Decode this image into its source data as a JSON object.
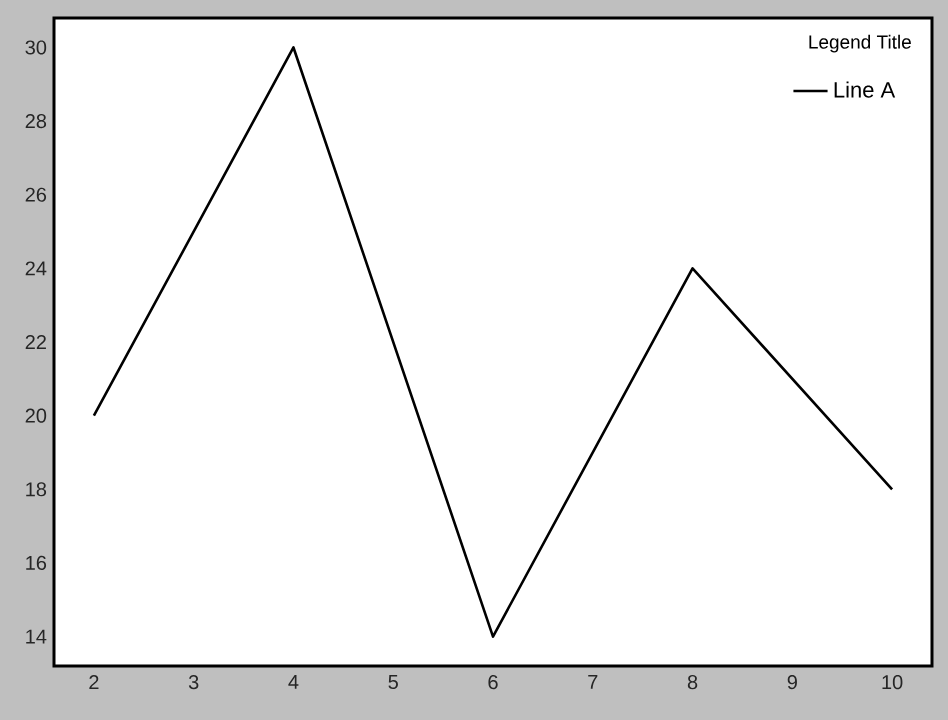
{
  "chart_data": {
    "type": "line",
    "legend_title": "Legend Title",
    "x": [
      2,
      4,
      6,
      8,
      10
    ],
    "series": [
      {
        "name": "Line A",
        "color": "#000000",
        "values": [
          20,
          30,
          14,
          24,
          18
        ]
      }
    ],
    "xlim": [
      1.6,
      10.4
    ],
    "ylim": [
      13.2,
      30.8
    ],
    "xticks": [
      2,
      3,
      4,
      5,
      6,
      7,
      8,
      9,
      10
    ],
    "yticks": [
      14,
      16,
      18,
      20,
      22,
      24,
      26,
      28,
      30
    ],
    "grid": false,
    "legend": "top right",
    "marker": "none",
    "line_style": "solid"
  }
}
